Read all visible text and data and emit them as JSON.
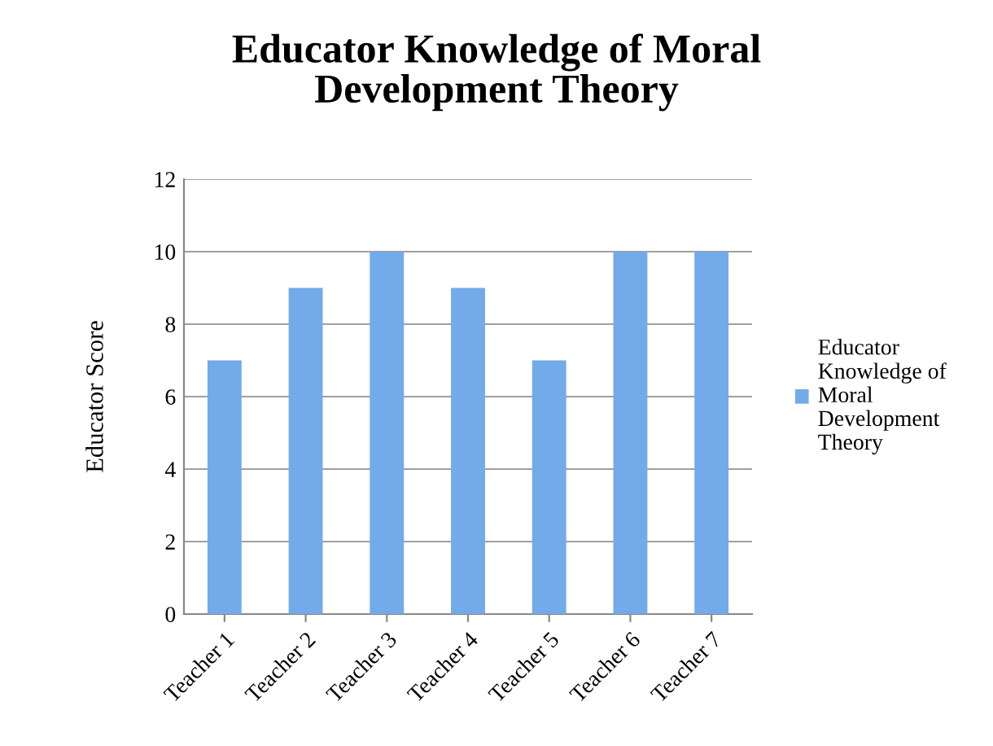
{
  "chart_data": {
    "type": "bar",
    "title": "Educator Knowledge of Moral\nDevelopment Theory",
    "ylabel": "Educator Score",
    "categories": [
      "Teacher 1",
      "Teacher 2",
      "Teacher 3",
      "Teacher 4",
      "Teacher 5",
      "Teacher 6",
      "Teacher 7"
    ],
    "series": [
      {
        "name": "Educator\nKnowledge of\nMoral\nDevelopment\nTheory",
        "color": "#73aaea",
        "values": [
          7,
          9,
          10,
          9,
          7,
          10,
          10
        ]
      }
    ],
    "ylim": [
      0,
      12
    ],
    "yticks": [
      0,
      2,
      4,
      6,
      8,
      10,
      12
    ],
    "grid": "y",
    "legend": "right"
  }
}
